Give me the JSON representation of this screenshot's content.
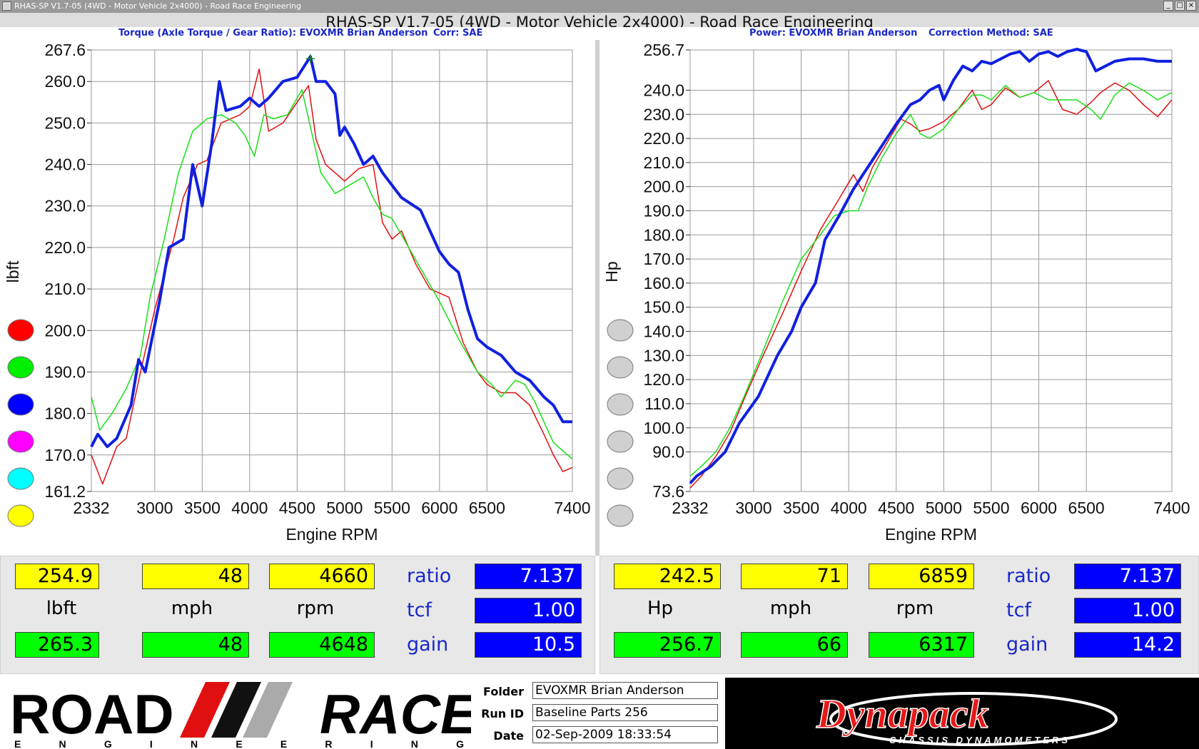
{
  "window": {
    "titlebar": "RHAS-SP V1.7-05  (4WD - Motor Vehicle 2x4000) - Road Race Engineering",
    "app_title": "RHAS-SP V1.7-05  (4WD - Motor Vehicle 2x4000) - Road Race Engineering"
  },
  "left_chart": {
    "header_torque": "Torque (Axle Torque / Gear Ratio): EVOXMR Brian Anderson",
    "header_corr": "Corr: SAE"
  },
  "right_chart": {
    "header_power": "Power: EVOXMR Brian Anderson",
    "header_corr": "Correction Method: SAE"
  },
  "chart_data": [
    {
      "type": "line",
      "xlabel": "Engine RPM",
      "ylabel": "lbft",
      "xlim": [
        2332,
        7400
      ],
      "ylim": [
        161.2,
        267.6
      ],
      "x_ticks": [
        "2332",
        "3000",
        "3500",
        "4000",
        "4500",
        "5000",
        "5500",
        "6000",
        "6500",
        "7400"
      ],
      "x_tick_values": [
        2332,
        3000,
        3500,
        4000,
        4500,
        5000,
        5500,
        6000,
        6500,
        7400
      ],
      "y_ticks": [
        "267.6",
        "260.0",
        "250.0",
        "240.0",
        "230.0",
        "220.0",
        "210.0",
        "200.0",
        "190.0",
        "180.0",
        "170.0",
        "161.2"
      ],
      "y_tick_values": [
        267.6,
        260,
        250,
        240,
        230,
        220,
        210,
        200,
        190,
        180,
        170,
        161.2
      ],
      "grid": true,
      "series": [
        {
          "color": "#e01010",
          "width": 1.5,
          "x": [
            2332,
            2450,
            2600,
            2700,
            2850,
            3000,
            3200,
            3300,
            3450,
            3550,
            3700,
            3900,
            4000,
            4100,
            4200,
            4350,
            4500,
            4620,
            4700,
            4800,
            5000,
            5150,
            5300,
            5400,
            5500,
            5600,
            5750,
            5900,
            6000,
            6100,
            6250,
            6400,
            6500,
            6650,
            6800,
            6950,
            7100,
            7200,
            7300,
            7400
          ],
          "y": [
            170,
            163,
            172,
            174,
            190,
            205,
            222,
            232,
            240,
            241,
            250,
            252,
            254,
            263,
            248,
            250,
            255,
            259,
            246,
            240,
            236,
            239,
            240,
            226,
            222,
            224,
            216,
            210,
            209,
            208,
            197,
            190,
            187,
            185,
            185,
            182,
            175,
            170,
            166,
            167
          ]
        },
        {
          "color": "#18e018",
          "width": 1.5,
          "x": [
            2332,
            2420,
            2550,
            2700,
            2850,
            2950,
            3100,
            3250,
            3400,
            3550,
            3700,
            3850,
            3950,
            4050,
            4150,
            4250,
            4400,
            4550,
            4650,
            4750,
            4900,
            5050,
            5200,
            5300,
            5400,
            5500,
            5650,
            5800,
            6000,
            6200,
            6400,
            6550,
            6650,
            6800,
            6900,
            7000,
            7100,
            7200,
            7300,
            7400
          ],
          "y": [
            184,
            176,
            180,
            186,
            194,
            208,
            222,
            238,
            248,
            251,
            252,
            250,
            247,
            242,
            252,
            251,
            252,
            258,
            248,
            238,
            233,
            235,
            237,
            232,
            228,
            227,
            221,
            215,
            207,
            198,
            190,
            187,
            184,
            188,
            187,
            183,
            178,
            173,
            171,
            169
          ]
        },
        {
          "color": "#1020e0",
          "width": 4,
          "x": [
            2332,
            2400,
            2500,
            2600,
            2750,
            2830,
            2900,
            3050,
            3150,
            3300,
            3400,
            3500,
            3600,
            3680,
            3750,
            3900,
            4000,
            4100,
            4200,
            4350,
            4500,
            4640,
            4700,
            4800,
            4900,
            4950,
            5000,
            5100,
            5200,
            5300,
            5400,
            5500,
            5600,
            5800,
            5900,
            6000,
            6100,
            6200,
            6300,
            6400,
            6500,
            6650,
            6800,
            6950,
            7100,
            7200,
            7300,
            7400
          ],
          "y": [
            172,
            175,
            172,
            174,
            182,
            193,
            190,
            207,
            220,
            222,
            240,
            230,
            245,
            260,
            253,
            254,
            256,
            254,
            256,
            260,
            261,
            266,
            260,
            260,
            257,
            247,
            249,
            245,
            240,
            242,
            238,
            235,
            232,
            229,
            224,
            219,
            216,
            214,
            205,
            198,
            196,
            194,
            190,
            188,
            184,
            182,
            178,
            178
          ]
        }
      ],
      "legend_dots": [
        "#ff0000",
        "#00ee00",
        "#0000ff",
        "#ff00ff",
        "#00ffff",
        "#ffff00"
      ],
      "marker": {
        "x": 4640,
        "y": 265.5
      }
    },
    {
      "type": "line",
      "xlabel": "Engine RPM",
      "ylabel": "Hp",
      "xlim": [
        2332,
        7400
      ],
      "ylim": [
        73.6,
        256.7
      ],
      "x_ticks": [
        "2332",
        "3000",
        "3500",
        "4000",
        "4500",
        "5000",
        "5500",
        "6000",
        "6500",
        "7400"
      ],
      "x_tick_values": [
        2332,
        3000,
        3500,
        4000,
        4500,
        5000,
        5500,
        6000,
        6500,
        7400
      ],
      "y_ticks": [
        "256.7",
        "240.0",
        "230.0",
        "220.0",
        "210.0",
        "200.0",
        "190.0",
        "180.0",
        "170.0",
        "160.0",
        "150.0",
        "140.0",
        "130.0",
        "120.0",
        "110.0",
        "100.0",
        "90.0",
        "73.6"
      ],
      "y_tick_values": [
        256.7,
        240,
        230,
        220,
        210,
        200,
        190,
        180,
        170,
        160,
        150,
        140,
        130,
        120,
        110,
        100,
        90,
        73.6
      ],
      "grid": true,
      "series": [
        {
          "color": "#e01010",
          "width": 1.5,
          "x": [
            2332,
            2450,
            2600,
            2750,
            2900,
            3100,
            3300,
            3500,
            3700,
            3900,
            4050,
            4150,
            4250,
            4400,
            4550,
            4650,
            4750,
            4850,
            5000,
            5150,
            5300,
            5400,
            5500,
            5650,
            5800,
            5950,
            6100,
            6250,
            6400,
            6550,
            6650,
            6800,
            6950,
            7100,
            7250,
            7400
          ],
          "y": [
            75,
            80,
            88,
            98,
            112,
            130,
            147,
            165,
            182,
            195,
            205,
            198,
            208,
            218,
            228,
            226,
            223,
            224,
            227,
            232,
            240,
            232,
            234,
            241,
            237,
            239,
            244,
            232,
            230,
            235,
            239,
            243,
            240,
            234,
            229,
            236
          ]
        },
        {
          "color": "#18e018",
          "width": 1.5,
          "x": [
            2332,
            2450,
            2600,
            2750,
            2900,
            3100,
            3300,
            3500,
            3700,
            3850,
            4000,
            4100,
            4200,
            4350,
            4500,
            4650,
            4750,
            4850,
            5000,
            5150,
            5300,
            5400,
            5500,
            5650,
            5800,
            5950,
            6100,
            6250,
            6400,
            6550,
            6650,
            6800,
            6950,
            7100,
            7250,
            7400
          ],
          "y": [
            80,
            84,
            90,
            100,
            113,
            132,
            152,
            170,
            180,
            188,
            190,
            190,
            200,
            212,
            222,
            230,
            222,
            220,
            224,
            232,
            238,
            238,
            236,
            242,
            237,
            239,
            236,
            236,
            236,
            232,
            228,
            238,
            243,
            240,
            236,
            239
          ]
        },
        {
          "color": "#1020e0",
          "width": 4,
          "x": [
            2332,
            2400,
            2550,
            2700,
            2850,
            3050,
            3250,
            3400,
            3500,
            3650,
            3750,
            3900,
            4050,
            4200,
            4350,
            4500,
            4650,
            4750,
            4850,
            4950,
            5000,
            5100,
            5200,
            5300,
            5400,
            5500,
            5600,
            5700,
            5800,
            5900,
            6000,
            6100,
            6200,
            6300,
            6400,
            6500,
            6600,
            6700,
            6800,
            6950,
            7100,
            7250,
            7400
          ],
          "y": [
            77,
            80,
            84,
            90,
            102,
            113,
            130,
            140,
            150,
            160,
            178,
            188,
            199,
            208,
            217,
            226,
            234,
            236,
            240,
            242,
            236,
            244,
            250,
            248,
            252,
            251,
            253,
            255,
            256,
            252,
            255,
            256,
            254,
            256,
            257,
            256,
            248,
            250,
            252,
            253,
            253,
            252,
            252
          ]
        }
      ],
      "legend_dots": [
        "#d0d0d0",
        "#d0d0d0",
        "#d0d0d0",
        "#d0d0d0",
        "#d0d0d0",
        "#d0d0d0"
      ]
    }
  ],
  "readouts_left": {
    "value1": "254.9",
    "value2": "48",
    "value3": "4660",
    "unit1": "lbft",
    "unit2": "mph",
    "unit3": "rpm",
    "value4": "265.3",
    "value5": "48",
    "value6": "4648",
    "ratio_label": "ratio",
    "tcf_label": "tcf",
    "gain_label": "gain",
    "ratio": "7.137",
    "tcf": "1.00",
    "gain": "10.5"
  },
  "readouts_right": {
    "value1": "242.5",
    "value2": "71",
    "value3": "6859",
    "unit1": "Hp",
    "unit2": "mph",
    "unit3": "rpm",
    "value4": "256.7",
    "value5": "66",
    "value6": "6317",
    "ratio_label": "ratio",
    "tcf_label": "tcf",
    "gain_label": "gain",
    "ratio": "7.137",
    "tcf": "1.00",
    "gain": "14.2"
  },
  "file_info": {
    "folder_label": "Folder",
    "folder": "EVOXMR Brian Anderson",
    "runid_label": "Run ID",
    "runid": "Baseline Parts 256",
    "date_label": "Date",
    "date": "02-Sep-2009  18:33:54"
  },
  "logos": {
    "road_race_top_left": "ROAD",
    "road_race_top_right": "RACE",
    "road_race_bottom": "E N G I N E E R I N G",
    "dynapack": "Dynapack",
    "dynapack_sub": "CHASSIS DYNAMOMETERS"
  }
}
